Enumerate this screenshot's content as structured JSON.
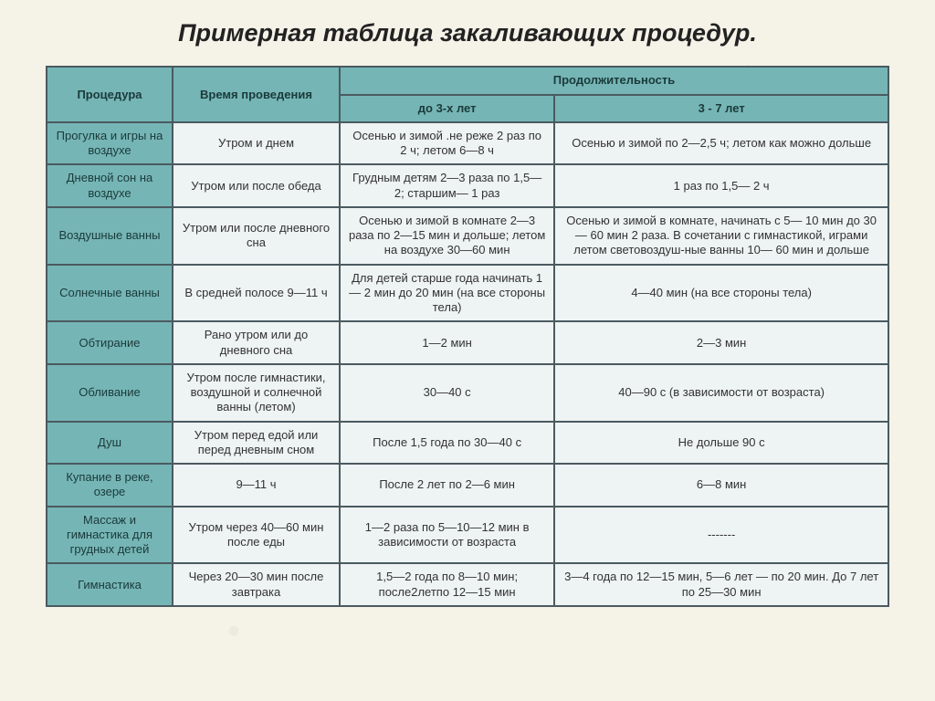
{
  "title": "Примерная таблица закаливающих процедур.",
  "table": {
    "headers": {
      "procedure": "Процедура",
      "time": "Время проведения",
      "duration": "Продолжительность",
      "under3": "до 3-х лет",
      "from3to7": "3 - 7 лет"
    },
    "rows": [
      {
        "proc": "Прогулка и игры на воздухе",
        "time": "Утром и днем",
        "under3": "Осенью и зимой .не реже 2 раз по 2 ч; летом 6—8 ч",
        "from3to7": "Осенью и зимой по 2—2,5 ч; летом как можно дольше"
      },
      {
        "proc": "Дневной сон на воздухе",
        "time": "Утром или после обеда",
        "under3": "Грудным детям 2—3 раза по 1,5—2; старшим— 1 раз",
        "from3to7": "1 раз по 1,5— 2 ч"
      },
      {
        "proc": "Воздушные ванны",
        "time": "Утром или после дневного сна",
        "under3": "Осенью и зимой в комнате 2—3 раза по 2—15 мин и дольше; летом на воздухе 30—60 мин",
        "from3to7": "Осенью и зимой в комнате, начинать с 5— 10 мин до 30— 60 мин 2 раза. В сочетании с гимнастикой, играми летом световоздуш-ные ванны 10— 60 мин и дольше"
      },
      {
        "proc": "Солнечные ванны",
        "time": "В средней полосе 9—11 ч",
        "under3": "Для детей старше года начинать 1— 2 мин до 20 мин (на все стороны тела)",
        "from3to7": "4—40 мин (на все стороны тела)"
      },
      {
        "proc": "Обтирание",
        "time": "Рано утром или до дневного сна",
        "under3": "1—2 мин",
        "from3to7": "2—3 мин"
      },
      {
        "proc": "Обливание",
        "time": "Утром после гимнастики, воздушной и солнечной ванны (летом)",
        "under3": "30—40 с",
        "from3to7": "40—90 с (в зависимости от возраста)"
      },
      {
        "proc": "Душ",
        "time": "Утром перед едой или перед дневным сном",
        "under3": "После 1,5 года по 30—40 с",
        "from3to7": "Не дольше 90 с"
      },
      {
        "proc": "Купание в реке, озере",
        "time": "9—11 ч",
        "under3": "После 2 лет по 2—6 мин",
        "from3to7": "6—8 мин"
      },
      {
        "proc": "Массаж и гимнастика для грудных детей",
        "time": "Утром через 40—60 мин после еды",
        "under3": "1—2 раза по 5—10—12 мин в зависимости от возраста",
        "from3to7": "-------"
      },
      {
        "proc": "Гимнастика",
        "time": "Через 20—30 мин после завтрака",
        "under3": "1,5—2 года по 8—10 мин; после2летпо 12—15 мин",
        "from3to7": "3—4 года по 12—15 мин, 5—6 лет — по 20 мин. До 7 лет по 25—30 мин"
      }
    ]
  },
  "colors": {
    "header_bg": "#76b5b5",
    "data_bg": "#eef3f3",
    "border": "#4a5a60",
    "page_bg": "#f5f2e8"
  }
}
